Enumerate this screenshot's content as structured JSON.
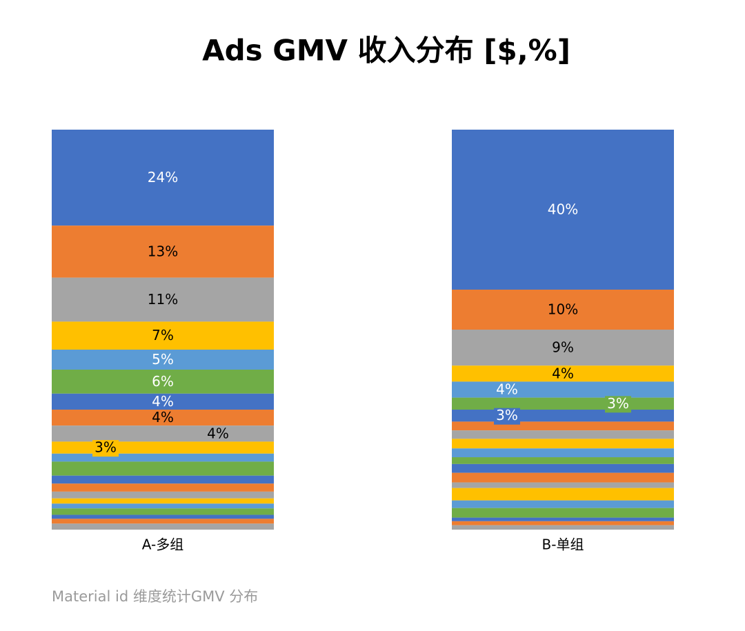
{
  "chart_data": {
    "type": "stacked_bar_100",
    "title": "Ads GMV 收入分布 [$,%]",
    "footnote": "Material id 维度统计GMV 分布",
    "categories": [
      "A-多组",
      "B-单组"
    ],
    "ylim": [
      0,
      100
    ],
    "series": [
      {
        "color": "#4472c4",
        "values": [
          24,
          40
        ],
        "value_labels": [
          "24%",
          "40%"
        ]
      },
      {
        "color": "#ed7d31",
        "values": [
          13,
          10
        ],
        "value_labels": [
          "13%",
          "10%"
        ]
      },
      {
        "color": "#a5a5a5",
        "values": [
          11,
          9
        ],
        "value_labels": [
          "11%",
          "9%"
        ]
      },
      {
        "color": "#ffc000",
        "values": [
          7,
          4
        ],
        "value_labels": [
          "7%",
          "4%"
        ]
      },
      {
        "color": "#5b9bd5",
        "values": [
          5,
          4
        ],
        "value_labels": [
          "5%",
          "4%"
        ]
      },
      {
        "color": "#70ad47",
        "values": [
          6,
          3
        ],
        "value_labels": [
          "6%",
          "3%"
        ]
      },
      {
        "color": "#4472c4",
        "values": [
          4,
          3
        ],
        "value_labels": [
          "4%",
          "3%"
        ]
      },
      {
        "color": "#ed7d31",
        "values": [
          4,
          2.2
        ],
        "value_labels": [
          "4%",
          null
        ]
      },
      {
        "color": "#a5a5a5",
        "values": [
          4,
          2.1
        ],
        "value_labels": [
          "4%",
          null
        ]
      },
      {
        "color": "#ffc000",
        "values": [
          3,
          2.4
        ],
        "value_labels": [
          "3%",
          null
        ]
      },
      {
        "color": "#5b9bd5",
        "values": [
          2,
          2.2
        ],
        "value_labels": [
          null,
          null
        ]
      },
      {
        "color": "#70ad47",
        "values": [
          3.5,
          1.7
        ],
        "value_labels": [
          null,
          null
        ]
      },
      {
        "color": "#4472c4",
        "values": [
          2,
          2.2
        ],
        "value_labels": [
          null,
          null
        ]
      },
      {
        "color": "#ed7d31",
        "values": [
          2,
          2.4
        ],
        "value_labels": [
          null,
          null
        ]
      },
      {
        "color": "#a5a5a5",
        "values": [
          1.7,
          1.4
        ],
        "value_labels": [
          null,
          null
        ]
      },
      {
        "color": "#ffc000",
        "values": [
          1.3,
          3.1
        ],
        "value_labels": [
          null,
          null
        ]
      },
      {
        "color": "#5b9bd5",
        "values": [
          1.2,
          1.9
        ],
        "value_labels": [
          null,
          null
        ]
      },
      {
        "color": "#70ad47",
        "values": [
          1.6,
          2.4
        ],
        "value_labels": [
          null,
          null
        ]
      },
      {
        "color": "#4472c4",
        "values": [
          1,
          0.9
        ],
        "value_labels": [
          null,
          null
        ]
      },
      {
        "color": "#ed7d31",
        "values": [
          1.2,
          1
        ],
        "value_labels": [
          null,
          null
        ]
      },
      {
        "color": "#a5a5a5",
        "values": [
          1.5,
          1.1
        ],
        "value_labels": [
          null,
          null
        ]
      }
    ]
  }
}
